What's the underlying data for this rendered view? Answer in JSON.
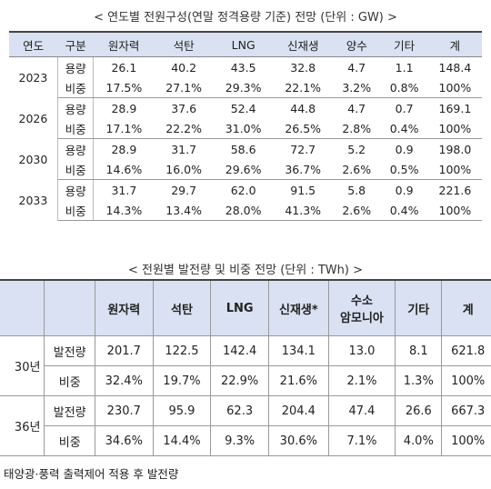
{
  "table1": {
    "title": "< 연도별 전원구성(연말 정격용량 기준) 전망 (단위 : GW) >",
    "headers": [
      "연도",
      "구분",
      "원자력",
      "석탄",
      "LNG",
      "신재생",
      "양수",
      "기타",
      "계"
    ],
    "groups": [
      {
        "year": "2023",
        "rows": [
          {
            "kind": "용량",
            "values": [
              "26.1",
              "40.2",
              "43.5",
              "32.8",
              "4.7",
              "1.1",
              "148.4"
            ]
          },
          {
            "kind": "비중",
            "values": [
              "17.5%",
              "27.1%",
              "29.3%",
              "22.1%",
              "3.2%",
              "0.8%",
              "100%"
            ]
          }
        ]
      },
      {
        "year": "2026",
        "rows": [
          {
            "kind": "용량",
            "values": [
              "28.9",
              "37.6",
              "52.4",
              "44.8",
              "4.7",
              "0.7",
              "169.1"
            ]
          },
          {
            "kind": "비중",
            "values": [
              "17.1%",
              "22.2%",
              "31.0%",
              "26.5%",
              "2.8%",
              "0.4%",
              "100%"
            ]
          }
        ]
      },
      {
        "year": "2030",
        "rows": [
          {
            "kind": "용량",
            "values": [
              "28.9",
              "31.7",
              "58.6",
              "72.7",
              "5.2",
              "0.9",
              "198.0"
            ]
          },
          {
            "kind": "비중",
            "values": [
              "14.6%",
              "16.0%",
              "29.6%",
              "36.7%",
              "2.6%",
              "0.5%",
              "100%"
            ]
          }
        ]
      },
      {
        "year": "2033",
        "rows": [
          {
            "kind": "용량",
            "values": [
              "31.7",
              "29.7",
              "62.0",
              "91.5",
              "5.8",
              "0.9",
              "221.6"
            ]
          },
          {
            "kind": "비중",
            "values": [
              "14.3%",
              "13.4%",
              "28.0%",
              "41.3%",
              "2.6%",
              "0.4%",
              "100%"
            ]
          }
        ]
      }
    ]
  },
  "table2": {
    "title": "< 전원별 발전량 및 비중 전망 (단위 : TWh) >",
    "headers": [
      "",
      "",
      "원자력",
      "석탄",
      "LNG",
      "신재생*",
      "수소\n암모니아",
      "기타",
      "계"
    ],
    "groups": [
      {
        "year": "30년",
        "rows": [
          {
            "kind": "발전량",
            "values": [
              "201.7",
              "122.5",
              "142.4",
              "134.1",
              "13.0",
              "8.1",
              "621.8"
            ]
          },
          {
            "kind": "비중",
            "values": [
              "32.4%",
              "19.7%",
              "22.9%",
              "21.6%",
              "2.1%",
              "1.3%",
              "100%"
            ]
          }
        ]
      },
      {
        "year": "36년",
        "rows": [
          {
            "kind": "발전량",
            "values": [
              "230.7",
              "95.9",
              "62.3",
              "204.4",
              "47.4",
              "26.6",
              "667.3"
            ]
          },
          {
            "kind": "비중",
            "values": [
              "34.6%",
              "14.4%",
              "9.3%",
              "30.6%",
              "7.1%",
              "4.0%",
              "100%"
            ]
          }
        ]
      }
    ]
  },
  "note": "태양광·풍력 출력제어 적용 후 발전량"
}
